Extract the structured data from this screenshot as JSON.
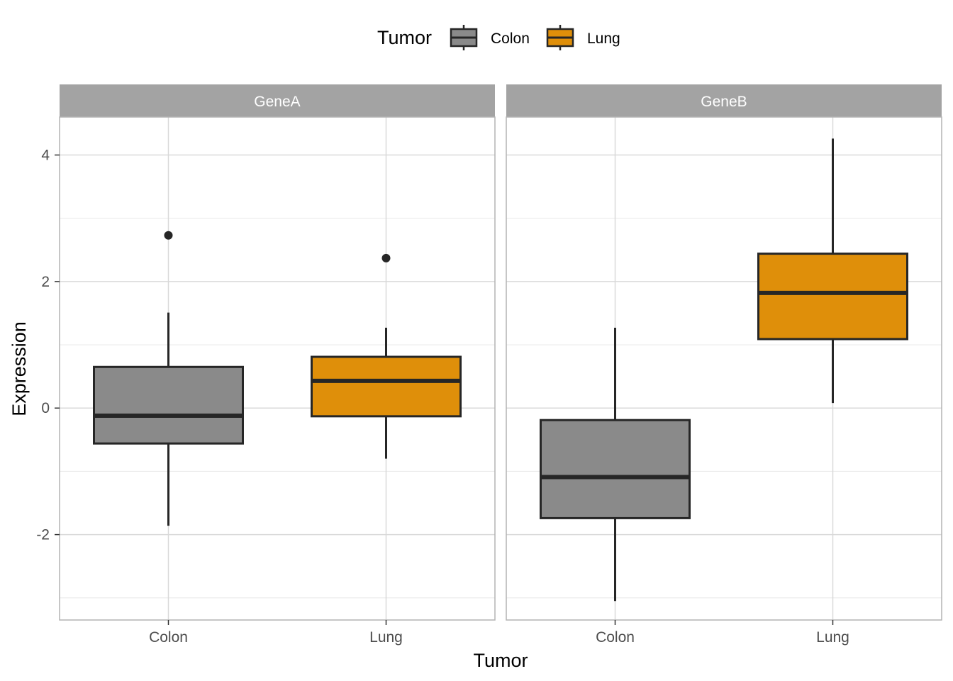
{
  "chart_data": {
    "type": "boxplot",
    "xlabel": "Tumor",
    "ylabel": "Expression",
    "ylim": [
      -3.35,
      4.6
    ],
    "yticks": [
      -2,
      0,
      2,
      4
    ],
    "yticklabels": [
      "-2",
      "0",
      "2",
      "4"
    ],
    "grid": true,
    "legend": {
      "title": "Tumor",
      "position": "top",
      "entries": [
        {
          "label": "Colon",
          "color": "#8a8a8a"
        },
        {
          "label": "Lung",
          "color": "#df8f0a"
        }
      ]
    },
    "categories": [
      "Colon",
      "Lung"
    ],
    "facets": [
      {
        "label": "GeneA",
        "boxes": [
          {
            "category": "Colon",
            "whisker_low": -1.86,
            "q1": -0.56,
            "median": -0.12,
            "q3": 0.65,
            "whisker_high": 1.51,
            "outliers": [
              2.73
            ]
          },
          {
            "category": "Lung",
            "whisker_low": -0.8,
            "q1": -0.13,
            "median": 0.43,
            "q3": 0.81,
            "whisker_high": 1.27,
            "outliers": [
              2.37
            ]
          }
        ]
      },
      {
        "label": "GeneB",
        "boxes": [
          {
            "category": "Colon",
            "whisker_low": -3.05,
            "q1": -1.74,
            "median": -1.09,
            "q3": -0.19,
            "whisker_high": 1.27,
            "outliers": []
          },
          {
            "category": "Lung",
            "whisker_low": 0.08,
            "q1": 1.09,
            "median": 1.82,
            "q3": 2.44,
            "whisker_high": 4.26,
            "outliers": []
          }
        ]
      }
    ]
  },
  "colors": {
    "strip_bg": "#a3a3a3",
    "panel_border": "#b3b3b3",
    "grid_major": "#d9d9d9",
    "grid_minor": "#ebebeb",
    "box_line": "#262626"
  }
}
